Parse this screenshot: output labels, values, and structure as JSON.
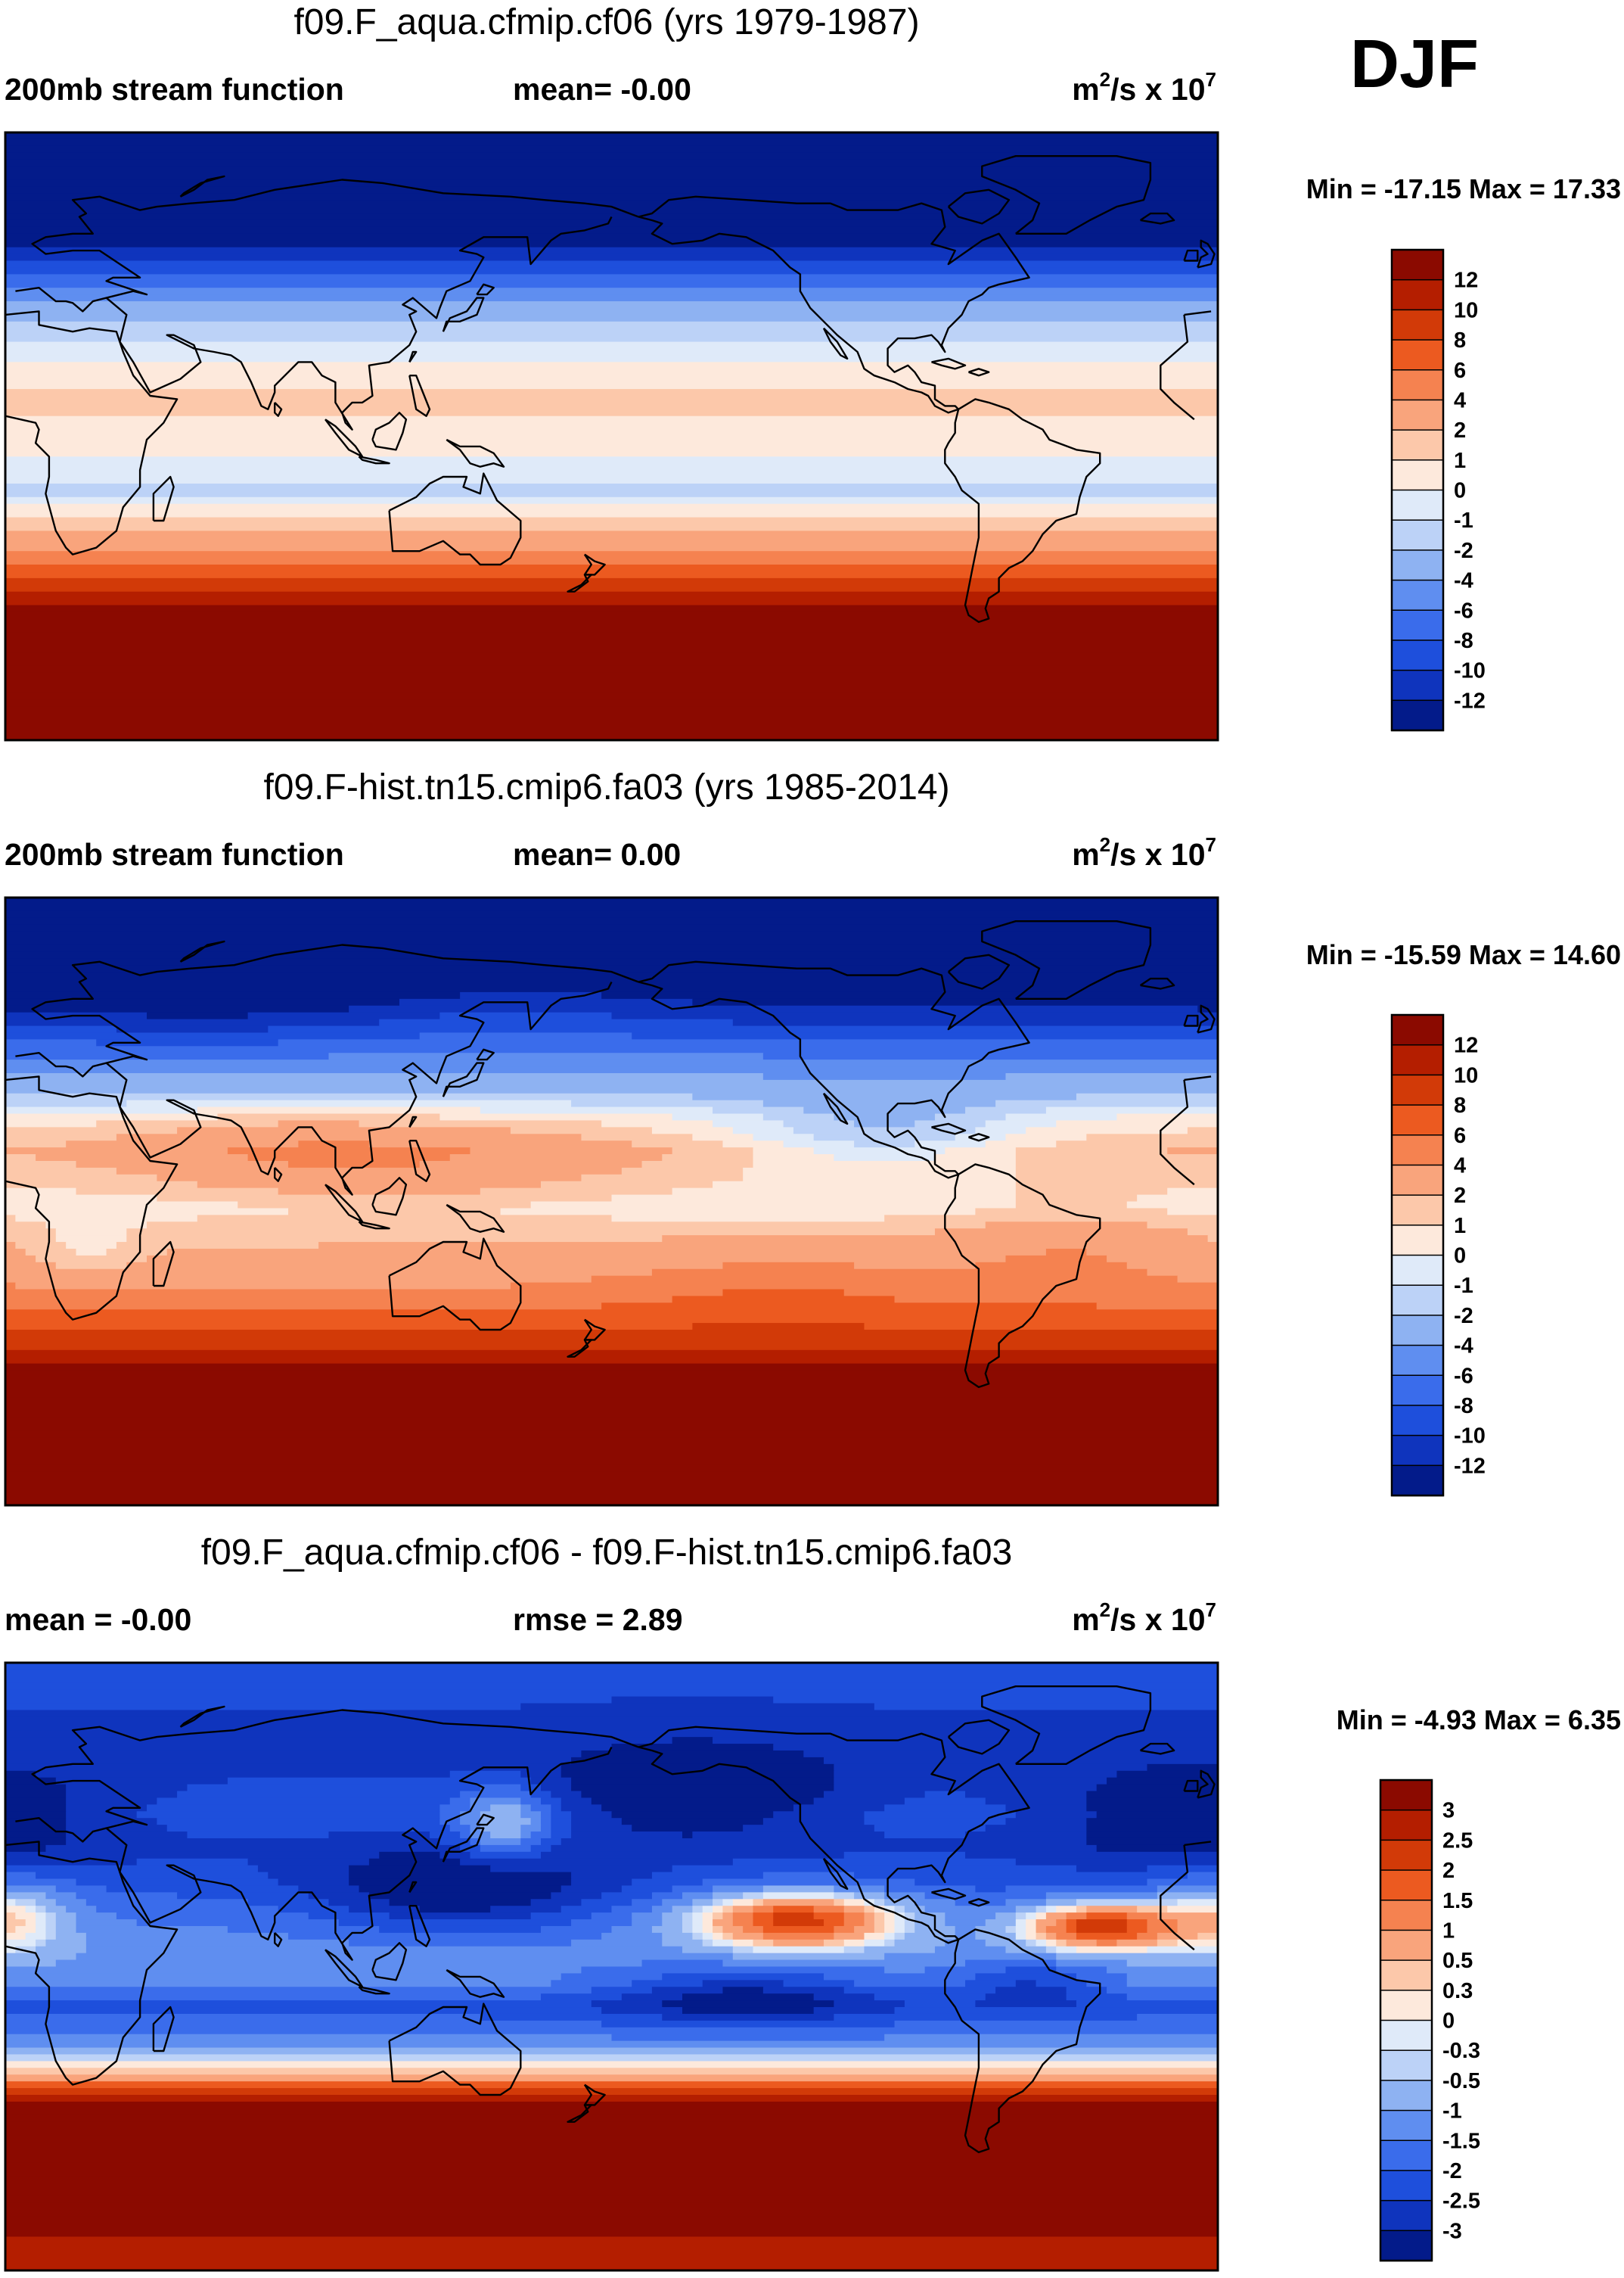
{
  "season": "DJF",
  "palette": {
    "reds": [
      "#8b0a00",
      "#b41e00",
      "#d23a08",
      "#ec5a20",
      "#f58250",
      "#f9a47c",
      "#fcc8aa",
      "#fde9dc"
    ],
    "blues": [
      "#dfeaf9",
      "#bcd2f7",
      "#8eb2f2",
      "#5f8ef0",
      "#3a6ceb",
      "#1e4fdc",
      "#0f34bd",
      "#031b8a"
    ],
    "coastline": "#000000",
    "background": "#ffffff"
  },
  "chart_data": [
    {
      "type": "heatmap",
      "title": "f09.F_aqua.cfmip.cf06 (yrs 1979-1987)",
      "left_label": "200mb stream function",
      "center_label": "mean=  -0.00",
      "units_base": "m",
      "units_exp1": "2",
      "units_mid": "/s x 10",
      "units_exp2": "7",
      "minmax": "Min = -17.15 Max =  17.33",
      "min": -17.15,
      "max": 17.33,
      "mean": -0.0,
      "levels": [
        -12,
        -10,
        -8,
        -6,
        -4,
        -2,
        -1,
        0,
        1,
        2,
        4,
        6,
        8,
        10,
        12
      ],
      "level_labels": [
        "-12",
        "-10",
        "-8",
        "-6",
        "-4",
        "-2",
        "-1",
        "0",
        "1",
        "2",
        "4",
        "6",
        "8",
        "10",
        "12"
      ],
      "pattern": "zonal bands: strongly negative (north) to strongly positive (south)"
    },
    {
      "type": "heatmap",
      "title": "f09.F-hist.tn15.cmip6.fa03 (yrs 1985-2014)",
      "left_label": "200mb stream function",
      "center_label": "mean=   0.00",
      "units_base": "m",
      "units_exp1": "2",
      "units_mid": "/s x 10",
      "units_exp2": "7",
      "minmax": "Min = -15.59 Max =  14.60",
      "min": -15.59,
      "max": 14.6,
      "mean": 0.0,
      "levels": [
        -12,
        -10,
        -8,
        -6,
        -4,
        -2,
        -1,
        0,
        1,
        2,
        4,
        6,
        8,
        10,
        12
      ],
      "level_labels": [
        "-12",
        "-10",
        "-8",
        "-6",
        "-4",
        "-2",
        "-1",
        "0",
        "1",
        "2",
        "4",
        "6",
        "8",
        "10",
        "12"
      ],
      "pattern": "zonal bands with positive anomalies over Asia/Pacific and South America"
    },
    {
      "type": "heatmap",
      "title": "f09.F_aqua.cfmip.cf06 - f09.F-hist.tn15.cmip6.fa03",
      "left_label": "mean =  -0.00",
      "center_label": "rmse =    2.89",
      "units_base": "m",
      "units_exp1": "2",
      "units_mid": "/s x 10",
      "units_exp2": "7",
      "minmax": "Min =  -4.93 Max =   6.35",
      "min": -4.93,
      "max": 6.35,
      "mean": -0.0,
      "rmse": 2.89,
      "levels": [
        -3,
        -2.5,
        -2,
        -1.5,
        -1,
        -0.5,
        -0.3,
        0,
        0.3,
        0.5,
        1,
        1.5,
        2,
        2.5,
        3
      ],
      "level_labels": [
        "-3",
        "-2.5",
        "-2",
        "-1.5",
        "-1",
        "-0.5",
        "-0.3",
        "0",
        "0.3",
        "0.5",
        "1",
        "1.5",
        "2",
        "2.5",
        "3"
      ],
      "pattern": "negative difference over northern hemisphere, sharp transition to positive in southern mid-latitudes"
    }
  ]
}
